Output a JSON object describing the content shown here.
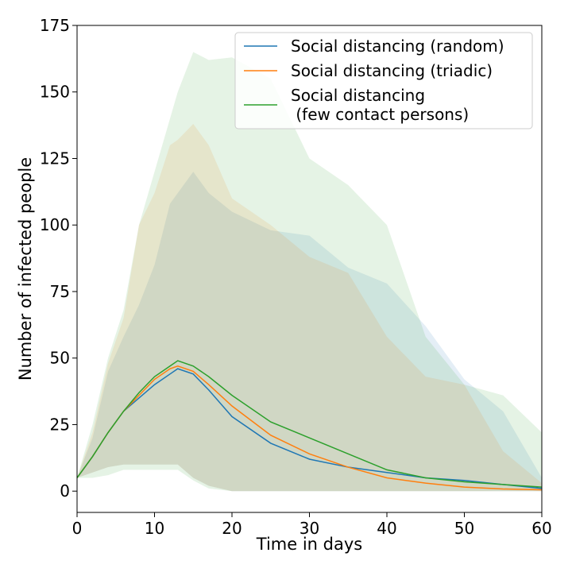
{
  "chart_data": {
    "type": "line",
    "title": "",
    "xlabel": "Time in days",
    "ylabel": "Number of infected people",
    "xlim": [
      0,
      60
    ],
    "ylim": [
      -8,
      175
    ],
    "xticks": [
      0,
      10,
      20,
      30,
      40,
      50,
      60
    ],
    "yticks": [
      0,
      25,
      50,
      75,
      100,
      125,
      150,
      175
    ],
    "grid": false,
    "legend_position": "top-right",
    "x": [
      0,
      2,
      4,
      6,
      8,
      10,
      12,
      13,
      15,
      17,
      20,
      25,
      30,
      35,
      40,
      45,
      50,
      55,
      60
    ],
    "series": [
      {
        "name": "Social distancing (random)",
        "color": "#1f77b4",
        "values": [
          5,
          13,
          22,
          30,
          35,
          40,
          44,
          46,
          44,
          38,
          28,
          18,
          12,
          9,
          7,
          5,
          4,
          2.5,
          1
        ],
        "band_upper": [
          5,
          20,
          45,
          58,
          70,
          85,
          108,
          112,
          120,
          112,
          105,
          98,
          96,
          84,
          78,
          62,
          42,
          30,
          5
        ],
        "band_lower": [
          5,
          7,
          9,
          10,
          10,
          10,
          10,
          10,
          5,
          2,
          0,
          0,
          0,
          0,
          0,
          0,
          0,
          0,
          0
        ]
      },
      {
        "name": "Social distancing (triadic)",
        "color": "#ff7f0e",
        "values": [
          5,
          13,
          22,
          30,
          36,
          42,
          46,
          47,
          45,
          40,
          32,
          21,
          14,
          9,
          5,
          3,
          1.5,
          0.8,
          0.5
        ],
        "band_upper": [
          5,
          22,
          48,
          65,
          100,
          112,
          130,
          132,
          138,
          130,
          110,
          100,
          88,
          82,
          58,
          43,
          40,
          15,
          3
        ],
        "band_lower": [
          5,
          7,
          9,
          10,
          10,
          10,
          10,
          10,
          5,
          2,
          0,
          0,
          0,
          0,
          0,
          0,
          0,
          0,
          0
        ]
      },
      {
        "name": "Social distancing\n (few contact persons)",
        "color": "#2ca02c",
        "values": [
          5,
          13,
          22,
          30,
          37,
          43,
          47,
          49,
          47,
          43,
          36,
          26,
          20,
          14,
          8,
          5,
          3.5,
          2.5,
          1.5
        ],
        "band_upper": [
          5,
          25,
          50,
          68,
          100,
          120,
          140,
          150,
          165,
          162,
          163,
          155,
          125,
          115,
          100,
          58,
          40,
          36,
          22
        ],
        "band_lower": [
          5,
          5,
          6,
          8,
          8,
          8,
          8,
          8,
          4,
          1,
          0,
          0,
          0,
          0,
          0,
          0,
          0,
          0,
          0
        ]
      }
    ]
  }
}
